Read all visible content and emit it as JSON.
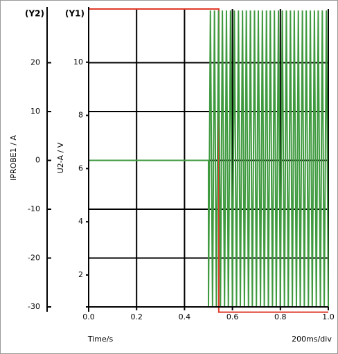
{
  "chart_data": {
    "type": "line",
    "y2_header": "(Y2)",
    "y1_header": "(Y1)",
    "y2_label": "IPROBE1 / A",
    "ylabel": "U2-A / V",
    "xlabel": "Time/s",
    "scale_note": "200ms/div",
    "xlim": [
      0,
      1
    ],
    "xticks": [
      {
        "value": 0,
        "label": "0.0"
      },
      0.2,
      0.4,
      0.6,
      0.8,
      {
        "value": 1,
        "label": "1.0"
      }
    ],
    "ylim": [
      0.8,
      12
    ],
    "yticks": [
      2,
      4,
      6,
      8,
      10
    ],
    "y2lim": [
      -30,
      31
    ],
    "y2ticks": [
      -30,
      -20,
      -10,
      0,
      10,
      20
    ],
    "grid": true,
    "series": [
      {
        "color": "#e03a2a",
        "x": [
          0,
          0.543,
          0.543,
          1.0
        ],
        "values": [
          12,
          12,
          0.6,
          0.6
        ]
      },
      {
        "color": "#3f9a3f",
        "axis": "y2",
        "x": [
          0,
          0.5,
          0.5,
          0.508,
          0.517,
          0.525,
          0.533,
          0.542,
          0.55,
          0.558,
          0.567,
          0.575,
          0.583,
          0.592,
          0.6,
          0.608,
          0.617,
          0.625,
          0.633,
          0.642,
          0.65,
          0.658,
          0.667,
          0.675,
          0.683,
          0.692,
          0.7,
          0.708,
          0.717,
          0.725,
          0.733,
          0.742,
          0.75,
          0.758,
          0.767,
          0.775,
          0.783,
          0.792,
          0.8,
          0.808,
          0.817,
          0.825,
          0.833,
          0.842,
          0.85,
          0.858,
          0.867,
          0.875,
          0.883,
          0.892,
          0.9,
          0.908,
          0.917,
          0.925,
          0.933,
          0.942,
          0.95,
          0.958,
          0.967,
          0.975,
          0.983,
          0.992,
          1.0
        ],
        "values": [
          0,
          0,
          -30,
          30.7,
          -30,
          30.7,
          -30,
          30.7,
          -30,
          30.7,
          -30,
          30.7,
          -30,
          30.7,
          -30,
          30.7,
          -30,
          30.7,
          -30,
          30.7,
          -30,
          30.7,
          -30,
          30.7,
          -30,
          30.7,
          -30,
          30.7,
          -30,
          30.7,
          -30,
          30.7,
          -30,
          30.7,
          -30,
          30.7,
          -30,
          30.7,
          -30,
          30.7,
          -30,
          30.7,
          -30,
          30.7,
          -30,
          30.7,
          -30,
          30.7,
          -30,
          30.7,
          -30,
          30.7,
          -30,
          30.7,
          -30,
          30.7,
          -30,
          30.7,
          -30,
          30.7,
          -30,
          30.7,
          -30
        ]
      }
    ]
  }
}
